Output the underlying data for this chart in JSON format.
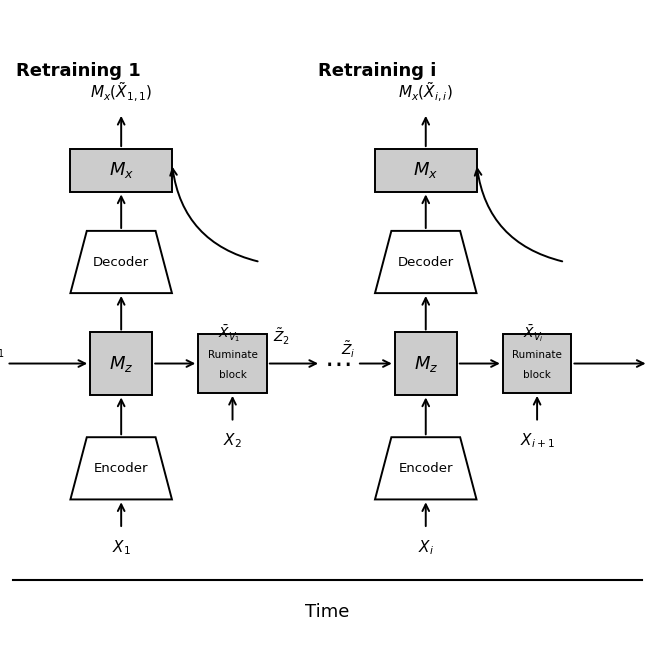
{
  "bg_color": "#ffffff",
  "fig_width": 6.55,
  "fig_height": 6.55,
  "dpi": 100,
  "title": "Time",
  "left_title": "Retraining 1",
  "right_title": "Retraining i",
  "box_color_gray": "#cccccc",
  "box_color_white": "#ffffff",
  "box_edge_color": "#000000"
}
